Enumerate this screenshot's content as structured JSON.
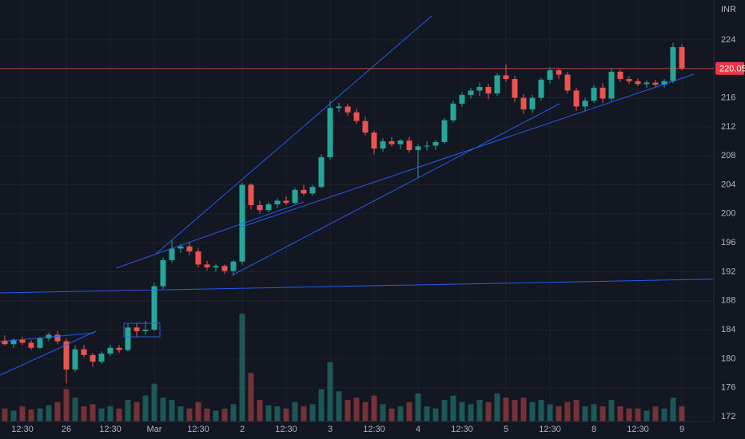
{
  "chart_data": {
    "type": "candlestick",
    "currency": "INR",
    "last_price": 220.05,
    "up_color": "#26a69a",
    "down_color": "#ef5350",
    "ylim": [
      171.34,
      229.5
    ],
    "yticks": [
      172,
      176,
      180,
      184,
      188,
      192,
      196,
      200,
      204,
      208,
      212,
      216,
      220,
      224
    ],
    "volume_lim": [
      0,
      100
    ],
    "grid": true,
    "categories": [
      null,
      null,
      "12:30",
      null,
      null,
      null,
      null,
      "26",
      null,
      null,
      null,
      null,
      "12:30",
      null,
      null,
      null,
      null,
      "Mar",
      null,
      null,
      null,
      null,
      "12:30",
      null,
      null,
      null,
      null,
      "2",
      null,
      null,
      null,
      null,
      "12:30",
      null,
      null,
      null,
      null,
      "3",
      null,
      null,
      null,
      null,
      "12:30",
      null,
      null,
      null,
      null,
      "4",
      null,
      null,
      null,
      null,
      "12:30",
      null,
      null,
      null,
      null,
      "5",
      null,
      null,
      null,
      null,
      "12:30",
      null,
      null,
      null,
      null,
      "8",
      null,
      null,
      null,
      null,
      "12:30",
      null,
      null,
      null,
      null,
      "9"
    ],
    "open": [
      182.5,
      182.0,
      182.6,
      182.2,
      181.5,
      182.8,
      183.3,
      182.4,
      178.5,
      181.3,
      180.5,
      179.6,
      180.7,
      181.5,
      181.2,
      184.3,
      183.8,
      184.0,
      190.0,
      193.6,
      195.2,
      195.5,
      194.8,
      193.0,
      192.6,
      192.8,
      192.1,
      193.4,
      204.0,
      201.2,
      200.5,
      201.3,
      201.8,
      201.5,
      203.3,
      202.8,
      203.7,
      207.8,
      214.6,
      214.8,
      214.0,
      212.8,
      211.2,
      209.0,
      210.0,
      209.6,
      210.1,
      208.8,
      209.3,
      209.4,
      209.9,
      212.9,
      215.2,
      216.4,
      217.0,
      217.5,
      216.6,
      219.1,
      218.6,
      216.0,
      214.4,
      216.0,
      218.5,
      219.8,
      219.2,
      217.0,
      214.8,
      215.6,
      217.4,
      215.9,
      219.6,
      218.6,
      218.3,
      217.9,
      218.1,
      217.8,
      218.3,
      223.0
    ],
    "high": [
      183.2,
      182.8,
      183.0,
      182.6,
      183.0,
      183.6,
      183.8,
      182.8,
      181.8,
      181.9,
      180.8,
      181.0,
      181.9,
      181.9,
      184.8,
      184.9,
      185.2,
      190.5,
      194.0,
      196.3,
      195.8,
      196.0,
      195.2,
      193.5,
      193.1,
      193.0,
      193.6,
      204.3,
      204.2,
      201.8,
      201.6,
      202.2,
      202.4,
      203.6,
      204.0,
      204.0,
      208.2,
      215.6,
      215.3,
      215.2,
      214.5,
      213.4,
      211.5,
      210.4,
      210.6,
      210.3,
      210.6,
      209.6,
      210.0,
      210.2,
      213.2,
      215.6,
      216.8,
      217.4,
      218.1,
      217.9,
      219.4,
      220.6,
      219.0,
      216.5,
      216.4,
      218.8,
      220.2,
      220.1,
      219.6,
      217.4,
      216.0,
      217.8,
      218.0,
      220.0,
      219.9,
      219.0,
      218.7,
      218.4,
      218.5,
      218.6,
      223.6,
      223.4
    ],
    "low": [
      181.8,
      181.5,
      181.9,
      181.2,
      181.3,
      182.4,
      182.0,
      176.6,
      178.2,
      180.2,
      178.9,
      179.3,
      180.4,
      180.8,
      181.0,
      183.0,
      183.3,
      183.8,
      189.6,
      193.2,
      194.6,
      194.3,
      192.6,
      192.2,
      192.0,
      191.7,
      191.5,
      193.0,
      200.6,
      200.0,
      200.2,
      200.8,
      201.2,
      201.3,
      202.5,
      202.5,
      203.5,
      207.5,
      214.0,
      213.5,
      212.4,
      210.8,
      208.2,
      208.6,
      209.3,
      208.9,
      208.4,
      205.0,
      208.8,
      208.8,
      209.6,
      212.6,
      214.8,
      215.9,
      216.3,
      215.8,
      216.3,
      218.2,
      215.4,
      213.8,
      213.9,
      215.6,
      218.0,
      218.6,
      216.6,
      214.2,
      214.1,
      215.3,
      215.3,
      215.6,
      218.2,
      217.9,
      217.6,
      217.4,
      217.5,
      217.4,
      218.0,
      219.8
    ],
    "close": [
      182.0,
      182.6,
      182.2,
      181.5,
      182.8,
      183.3,
      182.4,
      178.5,
      181.3,
      180.5,
      179.6,
      180.7,
      181.5,
      181.2,
      184.3,
      183.8,
      184.0,
      190.0,
      193.6,
      195.2,
      195.5,
      194.8,
      193.0,
      192.6,
      192.8,
      192.1,
      193.4,
      204.0,
      201.2,
      200.5,
      201.3,
      201.8,
      201.5,
      203.3,
      202.8,
      203.7,
      207.8,
      214.6,
      214.8,
      214.0,
      212.8,
      211.2,
      209.0,
      210.0,
      209.6,
      210.1,
      208.8,
      209.3,
      209.4,
      209.9,
      212.9,
      215.2,
      216.4,
      217.0,
      217.5,
      216.6,
      219.1,
      218.6,
      216.0,
      214.4,
      216.0,
      218.5,
      219.8,
      219.2,
      217.0,
      214.8,
      215.6,
      217.4,
      215.9,
      219.6,
      218.6,
      218.3,
      217.9,
      218.1,
      217.8,
      218.3,
      223.0,
      220.05
    ],
    "volume": [
      12,
      10,
      14,
      11,
      12,
      15,
      18,
      30,
      22,
      14,
      16,
      12,
      14,
      12,
      20,
      18,
      24,
      35,
      22,
      20,
      14,
      12,
      18,
      12,
      10,
      12,
      16,
      100,
      45,
      20,
      15,
      14,
      12,
      18,
      14,
      16,
      30,
      55,
      28,
      20,
      22,
      18,
      24,
      16,
      12,
      14,
      18,
      26,
      14,
      12,
      20,
      24,
      18,
      16,
      20,
      18,
      26,
      22,
      20,
      22,
      18,
      20,
      16,
      14,
      18,
      20,
      14,
      16,
      14,
      20,
      14,
      12,
      12,
      10,
      14,
      12,
      22,
      14
    ]
  }
}
